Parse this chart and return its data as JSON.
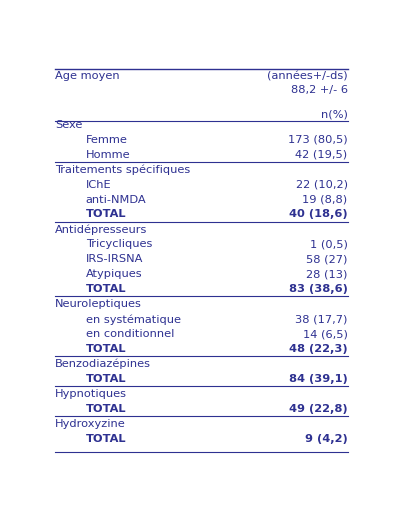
{
  "rows": [
    {
      "label": "Age moyen",
      "value": "(années+/-ds)",
      "indent": 0,
      "bold_label": false,
      "bold_value": false,
      "is_header": true,
      "line_below": false
    },
    {
      "label": "",
      "value": "88,2 +/- 6",
      "indent": 0,
      "bold_label": false,
      "bold_value": false,
      "is_header": false,
      "line_below": false
    },
    {
      "label": "",
      "value": "",
      "indent": 0,
      "bold_label": false,
      "bold_value": false,
      "is_header": false,
      "line_below": false
    },
    {
      "label": "",
      "value": "n(%)",
      "indent": 0,
      "bold_label": false,
      "bold_value": false,
      "is_header": false,
      "line_below": true
    },
    {
      "label": "Sexe",
      "value": "",
      "indent": 0,
      "bold_label": false,
      "bold_value": false,
      "is_header": true,
      "line_below": false
    },
    {
      "label": "Femme",
      "value": "173 (80,5)",
      "indent": 1,
      "bold_label": false,
      "bold_value": false,
      "is_header": false,
      "line_below": false
    },
    {
      "label": "Homme",
      "value": "42 (19,5)",
      "indent": 1,
      "bold_label": false,
      "bold_value": false,
      "is_header": false,
      "line_below": true
    },
    {
      "label": "Traitements spécifiques",
      "value": "",
      "indent": 0,
      "bold_label": false,
      "bold_value": false,
      "is_header": true,
      "line_below": false
    },
    {
      "label": "IChE",
      "value": "22 (10,2)",
      "indent": 1,
      "bold_label": false,
      "bold_value": false,
      "is_header": false,
      "line_below": false
    },
    {
      "label": "anti-NMDA",
      "value": "19 (8,8)",
      "indent": 1,
      "bold_label": false,
      "bold_value": false,
      "is_header": false,
      "line_below": false
    },
    {
      "label": "TOTAL",
      "value": "40 (18,6)",
      "indent": 1,
      "bold_label": true,
      "bold_value": true,
      "is_header": false,
      "line_below": true
    },
    {
      "label": "Antidépresseurs",
      "value": "",
      "indent": 0,
      "bold_label": false,
      "bold_value": false,
      "is_header": true,
      "line_below": false
    },
    {
      "label": "Tricycliques",
      "value": "1 (0,5)",
      "indent": 1,
      "bold_label": false,
      "bold_value": false,
      "is_header": false,
      "line_below": false
    },
    {
      "label": "IRS-IRSNA",
      "value": "58 (27)",
      "indent": 1,
      "bold_label": false,
      "bold_value": false,
      "is_header": false,
      "line_below": false
    },
    {
      "label": "Atypiques",
      "value": "28 (13)",
      "indent": 1,
      "bold_label": false,
      "bold_value": false,
      "is_header": false,
      "line_below": false
    },
    {
      "label": "TOTAL",
      "value": "83 (38,6)",
      "indent": 1,
      "bold_label": true,
      "bold_value": true,
      "is_header": false,
      "line_below": true
    },
    {
      "label": "Neuroleptiques",
      "value": "",
      "indent": 0,
      "bold_label": false,
      "bold_value": false,
      "is_header": true,
      "line_below": false
    },
    {
      "label": "en systématique",
      "value": "38 (17,7)",
      "indent": 1,
      "bold_label": false,
      "bold_value": false,
      "is_header": false,
      "line_below": false
    },
    {
      "label": "en conditionnel",
      "value": "14 (6,5)",
      "indent": 1,
      "bold_label": false,
      "bold_value": false,
      "is_header": false,
      "line_below": false
    },
    {
      "label": "TOTAL",
      "value": "48 (22,3)",
      "indent": 1,
      "bold_label": true,
      "bold_value": true,
      "is_header": false,
      "line_below": true
    },
    {
      "label": "Benzodiazépines",
      "value": "",
      "indent": 0,
      "bold_label": false,
      "bold_value": false,
      "is_header": true,
      "line_below": false
    },
    {
      "label": "TOTAL",
      "value": "84 (39,1)",
      "indent": 1,
      "bold_label": true,
      "bold_value": true,
      "is_header": false,
      "line_below": true
    },
    {
      "label": "Hypnotiques",
      "value": "",
      "indent": 0,
      "bold_label": false,
      "bold_value": false,
      "is_header": true,
      "line_below": false
    },
    {
      "label": "TOTAL",
      "value": "49 (22,8)",
      "indent": 1,
      "bold_label": true,
      "bold_value": true,
      "is_header": false,
      "line_below": true
    },
    {
      "label": "Hydroxyzine",
      "value": "",
      "indent": 0,
      "bold_label": false,
      "bold_value": false,
      "is_header": true,
      "line_below": false
    },
    {
      "label": "TOTAL",
      "value": "9 (4,2)",
      "indent": 1,
      "bold_label": true,
      "bold_value": true,
      "is_header": false,
      "line_below": false
    }
  ],
  "bg_color": "#ffffff",
  "text_color": "#2e3191",
  "line_color": "#2e3191",
  "font_size": 8.2,
  "fig_width": 3.93,
  "fig_height": 5.13
}
